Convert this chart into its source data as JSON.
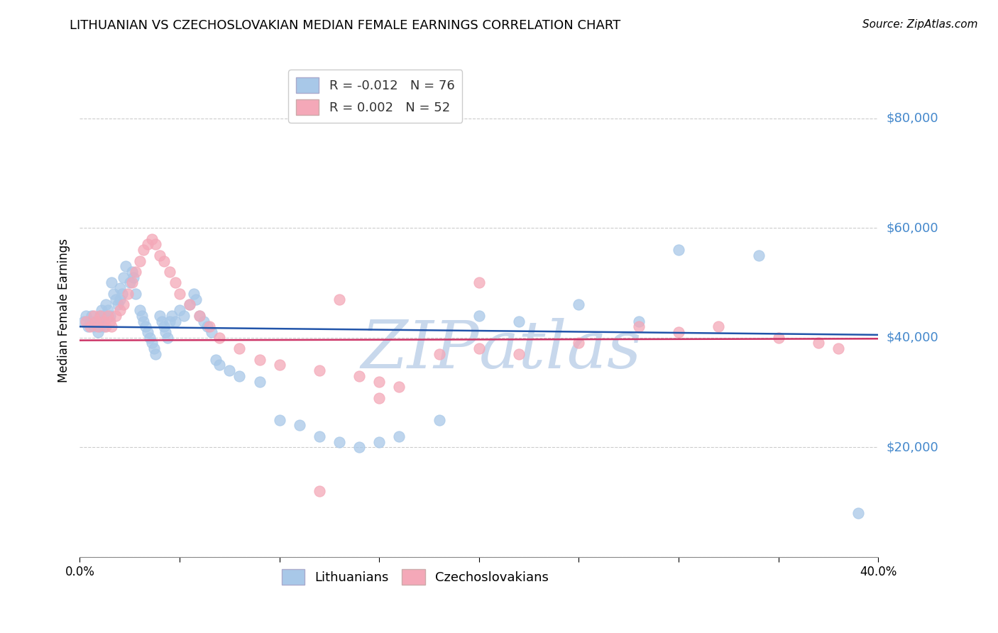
{
  "title": "LITHUANIAN VS CZECHOSLOVAKIAN MEDIAN FEMALE EARNINGS CORRELATION CHART",
  "source": "Source: ZipAtlas.com",
  "ylabel": "Median Female Earnings",
  "xlim": [
    0.0,
    0.4
  ],
  "ylim": [
    0,
    90000
  ],
  "yticks": [
    0,
    20000,
    40000,
    60000,
    80000
  ],
  "ytick_labels": [
    "",
    "$20,000",
    "$40,000",
    "$60,000",
    "$80,000"
  ],
  "xticks": [
    0.0,
    0.05,
    0.1,
    0.15,
    0.2,
    0.25,
    0.3,
    0.35,
    0.4
  ],
  "xtick_labels_show": [
    "0.0%",
    "",
    "",
    "",
    "",
    "",
    "",
    "",
    "40.0%"
  ],
  "legend_r1": "R = -0.012",
  "legend_n1": "N = 76",
  "legend_r2": "R = 0.002",
  "legend_n2": "N = 52",
  "blue_color": "#A8C8E8",
  "pink_color": "#F4A8B8",
  "blue_line_color": "#2255AA",
  "pink_line_color": "#CC3366",
  "tick_color": "#4488CC",
  "grid_color": "#CCCCCC",
  "watermark_color": "#C8D8EC",
  "blue_x": [
    0.002,
    0.003,
    0.004,
    0.005,
    0.006,
    0.007,
    0.008,
    0.009,
    0.01,
    0.01,
    0.01,
    0.011,
    0.012,
    0.012,
    0.013,
    0.014,
    0.015,
    0.016,
    0.017,
    0.018,
    0.019,
    0.02,
    0.02,
    0.021,
    0.022,
    0.023,
    0.025,
    0.026,
    0.027,
    0.028,
    0.03,
    0.031,
    0.032,
    0.033,
    0.034,
    0.035,
    0.036,
    0.037,
    0.038,
    0.04,
    0.041,
    0.042,
    0.043,
    0.044,
    0.045,
    0.046,
    0.048,
    0.05,
    0.052,
    0.055,
    0.057,
    0.058,
    0.06,
    0.062,
    0.064,
    0.066,
    0.068,
    0.07,
    0.075,
    0.08,
    0.09,
    0.1,
    0.11,
    0.12,
    0.13,
    0.14,
    0.15,
    0.16,
    0.18,
    0.2,
    0.22,
    0.25,
    0.28,
    0.3,
    0.34,
    0.39
  ],
  "blue_y": [
    43000,
    44000,
    42000,
    43000,
    44000,
    42000,
    43000,
    41000,
    44000,
    43000,
    42000,
    45000,
    44000,
    42000,
    46000,
    45000,
    44000,
    50000,
    48000,
    47000,
    46000,
    49000,
    47000,
    48000,
    51000,
    53000,
    50000,
    52000,
    51000,
    48000,
    45000,
    44000,
    43000,
    42000,
    41000,
    40000,
    39000,
    38000,
    37000,
    44000,
    43000,
    42000,
    41000,
    40000,
    43000,
    44000,
    43000,
    45000,
    44000,
    46000,
    48000,
    47000,
    44000,
    43000,
    42000,
    41000,
    36000,
    35000,
    34000,
    33000,
    32000,
    25000,
    24000,
    22000,
    21000,
    20000,
    21000,
    22000,
    25000,
    44000,
    43000,
    46000,
    43000,
    56000,
    55000,
    8000
  ],
  "pink_x": [
    0.003,
    0.005,
    0.007,
    0.008,
    0.009,
    0.01,
    0.012,
    0.013,
    0.014,
    0.015,
    0.016,
    0.018,
    0.02,
    0.022,
    0.024,
    0.026,
    0.028,
    0.03,
    0.032,
    0.034,
    0.036,
    0.038,
    0.04,
    0.042,
    0.045,
    0.048,
    0.05,
    0.055,
    0.06,
    0.065,
    0.07,
    0.08,
    0.09,
    0.1,
    0.12,
    0.14,
    0.15,
    0.16,
    0.18,
    0.2,
    0.22,
    0.25,
    0.28,
    0.3,
    0.32,
    0.35,
    0.37,
    0.38,
    0.2,
    0.13,
    0.15,
    0.12
  ],
  "pink_y": [
    43000,
    42000,
    44000,
    43000,
    42000,
    44000,
    43000,
    42000,
    44000,
    43000,
    42000,
    44000,
    45000,
    46000,
    48000,
    50000,
    52000,
    54000,
    56000,
    57000,
    58000,
    57000,
    55000,
    54000,
    52000,
    50000,
    48000,
    46000,
    44000,
    42000,
    40000,
    38000,
    36000,
    35000,
    34000,
    33000,
    32000,
    31000,
    37000,
    38000,
    37000,
    39000,
    42000,
    41000,
    42000,
    40000,
    39000,
    38000,
    50000,
    47000,
    29000,
    12000
  ]
}
